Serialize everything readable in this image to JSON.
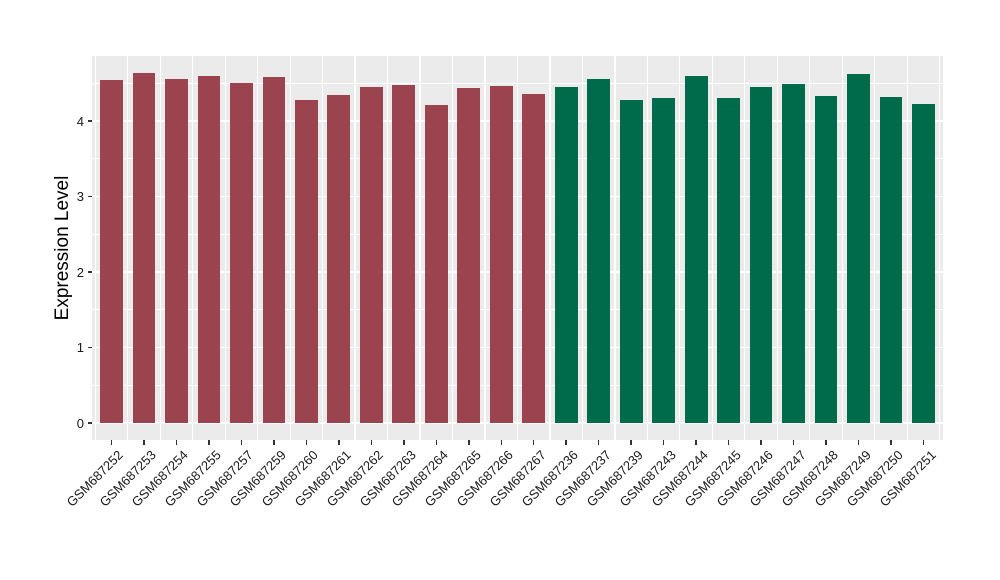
{
  "chart_data": {
    "type": "bar",
    "title": "",
    "xlabel": "",
    "ylabel": "Expression Level",
    "legend_position": "none",
    "grid": "on",
    "panel_bg": "#EBEBEB",
    "grid_color": "#FFFFFF",
    "axis_text_color": "#1A1A1A",
    "tick_mark_color": "#333333",
    "ylim": [
      -0.225,
      4.861
    ],
    "ytick_labels": [
      "0",
      "1",
      "2",
      "3",
      "4"
    ],
    "ytick_values": [
      0,
      1,
      2,
      3,
      4
    ],
    "yminor_values": [
      0.5,
      1.5,
      2.5,
      3.5,
      4.5
    ],
    "bar_relative_width": 0.7,
    "group_colors": {
      "group1": "#9B4450",
      "group2": "#006B4A"
    },
    "categories": [
      "GSM687252",
      "GSM687253",
      "GSM687254",
      "GSM687255",
      "GSM687257",
      "GSM687259",
      "GSM687260",
      "GSM687261",
      "GSM687262",
      "GSM687263",
      "GSM687264",
      "GSM687265",
      "GSM687266",
      "GSM687267",
      "GSM687236",
      "GSM687237",
      "GSM687239",
      "GSM687243",
      "GSM687244",
      "GSM687245",
      "GSM687246",
      "GSM687247",
      "GSM687248",
      "GSM687249",
      "GSM687250",
      "GSM687251"
    ],
    "values": [
      4.54,
      4.63,
      4.56,
      4.6,
      4.51,
      4.58,
      4.28,
      4.35,
      4.45,
      4.48,
      4.21,
      4.44,
      4.46,
      4.36,
      4.45,
      4.56,
      4.28,
      4.3,
      4.6,
      4.31,
      4.45,
      4.49,
      4.33,
      4.62,
      4.32,
      4.23
    ],
    "groups": [
      "group1",
      "group1",
      "group1",
      "group1",
      "group1",
      "group1",
      "group1",
      "group1",
      "group1",
      "group1",
      "group1",
      "group1",
      "group1",
      "group1",
      "group2",
      "group2",
      "group2",
      "group2",
      "group2",
      "group2",
      "group2",
      "group2",
      "group2",
      "group2",
      "group2",
      "group2"
    ]
  }
}
